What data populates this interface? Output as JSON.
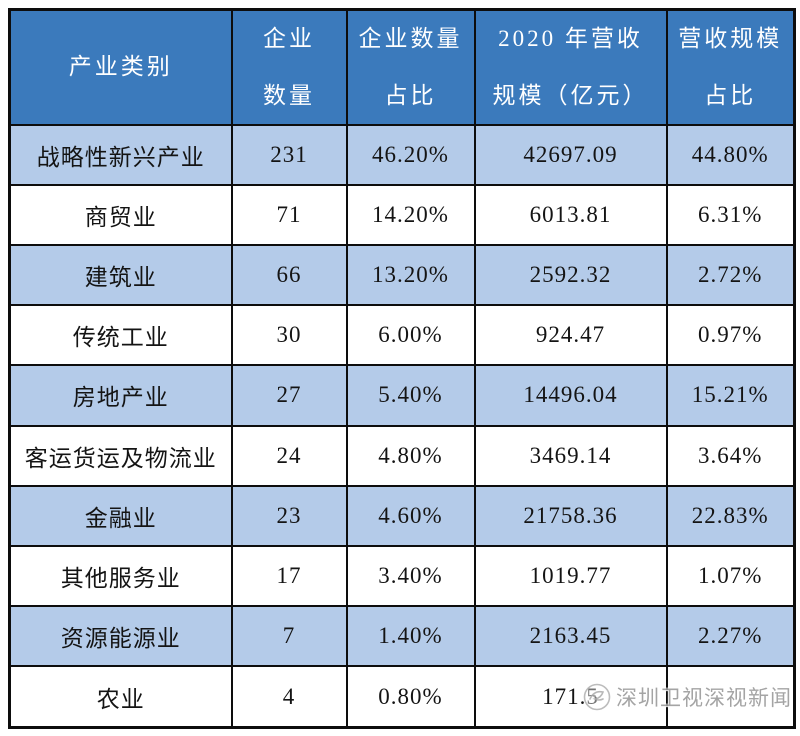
{
  "chart_data": {
    "type": "table",
    "columns": [
      {
        "lines": [
          "产业类别"
        ]
      },
      {
        "lines": [
          "企业",
          "数量"
        ]
      },
      {
        "lines": [
          "企业数量",
          "占比"
        ]
      },
      {
        "lines": [
          "2020 年营收",
          "规模（亿元）"
        ]
      },
      {
        "lines": [
          "营收规模",
          "占比"
        ]
      }
    ],
    "rows": [
      [
        "战略性新兴产业",
        "231",
        "46.20%",
        "42697.09",
        "44.80%"
      ],
      [
        "商贸业",
        "71",
        "14.20%",
        "6013.81",
        "6.31%"
      ],
      [
        "建筑业",
        "66",
        "13.20%",
        "2592.32",
        "2.72%"
      ],
      [
        "传统工业",
        "30",
        "6.00%",
        "924.47",
        "0.97%"
      ],
      [
        "房地产业",
        "27",
        "5.40%",
        "14496.04",
        "15.21%"
      ],
      [
        "客运货运及物流业",
        "24",
        "4.80%",
        "3469.14",
        "3.64%"
      ],
      [
        "金融业",
        "23",
        "4.60%",
        "21758.36",
        "22.83%"
      ],
      [
        "其他服务业",
        "17",
        "3.40%",
        "1019.77",
        "1.07%"
      ],
      [
        "资源能源业",
        "7",
        "1.40%",
        "2163.45",
        "2.27%"
      ],
      [
        "农业",
        "4",
        "0.80%",
        "171.5",
        ""
      ]
    ],
    "occlusion_note": "bottom-right cell values partially covered by watermark"
  },
  "watermark": {
    "text": "深圳卫视深视新闻",
    "logo": "shenzhen-tv-logo"
  },
  "colors": {
    "header_bg": "#3b7abc",
    "row_alt_bg": "#b4cbe9",
    "row_bg": "#ffffff",
    "border": "#0d0d0d",
    "header_text": "#ffffff",
    "body_text": "#141414",
    "watermark_text": "#9b9b9b"
  }
}
